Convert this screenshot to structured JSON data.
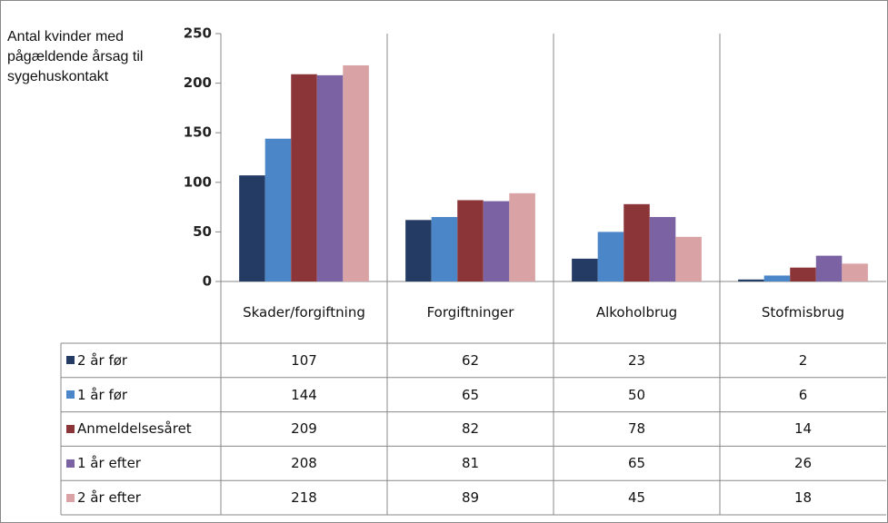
{
  "chart_data": {
    "type": "bar",
    "y_label": "Antal kvinder med pågældende årsag til sygehuskontakt",
    "categories": [
      "Skader/forgiftning",
      "Forgiftninger",
      "Alkoholbrug",
      "Stofmisbrug"
    ],
    "series": [
      {
        "name": "2 år før",
        "color": "#243c64",
        "values": [
          107,
          62,
          23,
          2
        ]
      },
      {
        "name": "1 år før",
        "color": "#4a86c8",
        "values": [
          144,
          65,
          50,
          6
        ]
      },
      {
        "name": "Anmeldelsesåret",
        "color": "#8b3538",
        "values": [
          209,
          82,
          78,
          14
        ]
      },
      {
        "name": "1 år efter",
        "color": "#7b62a3",
        "values": [
          208,
          81,
          65,
          26
        ]
      },
      {
        "name": "2 år efter",
        "color": "#d9a3a5",
        "values": [
          218,
          89,
          45,
          18
        ]
      }
    ],
    "ylim": [
      0,
      250
    ],
    "yticks": [
      0,
      50,
      100,
      150,
      200,
      250
    ],
    "grid": false
  }
}
